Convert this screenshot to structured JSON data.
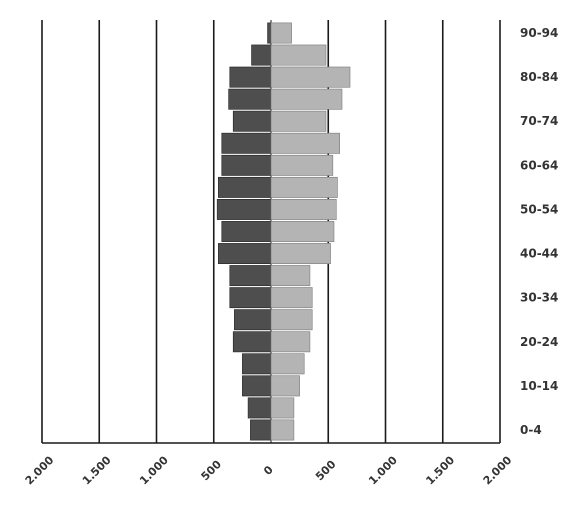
{
  "chart_data": {
    "type": "bar",
    "orientation": "horizontal",
    "layout": "population-pyramid",
    "categories": [
      "0-4",
      "5-9",
      "10-14",
      "15-19",
      "20-24",
      "25-29",
      "30-34",
      "35-39",
      "40-44",
      "45-49",
      "50-54",
      "55-59",
      "60-64",
      "65-69",
      "70-74",
      "75-79",
      "80-84",
      "85-89",
      "90-94"
    ],
    "category_labels": [
      "0-4",
      "",
      "10-14",
      "",
      "20-24",
      "",
      "30-34",
      "",
      "40-44",
      "",
      "50-54",
      "",
      "60-64",
      "",
      "70-74",
      "",
      "80-84",
      "",
      "90-94"
    ],
    "series": [
      {
        "side": "left",
        "color": "#4e4e4e",
        "values": [
          180,
          200,
          250,
          250,
          330,
          320,
          360,
          360,
          460,
          430,
          470,
          460,
          430,
          430,
          330,
          370,
          360,
          170,
          30
        ]
      },
      {
        "side": "right",
        "color": "#b4b4b4",
        "values": [
          200,
          200,
          250,
          290,
          340,
          360,
          360,
          340,
          520,
          550,
          570,
          580,
          540,
          600,
          480,
          620,
          690,
          480,
          180
        ]
      }
    ],
    "x_ticks": [
      -2000,
      -1500,
      -1000,
      -500,
      0,
      500,
      1000,
      1500,
      2000
    ],
    "x_tick_labels": [
      "2.000",
      "1.500",
      "1.000",
      "500",
      "0",
      "500",
      "1.000",
      "1.500",
      "2.000"
    ],
    "xlim": [
      -2000,
      2000
    ],
    "grid": "vertical",
    "legend": "none",
    "title": "",
    "xlabel": "",
    "ylabel": ""
  }
}
